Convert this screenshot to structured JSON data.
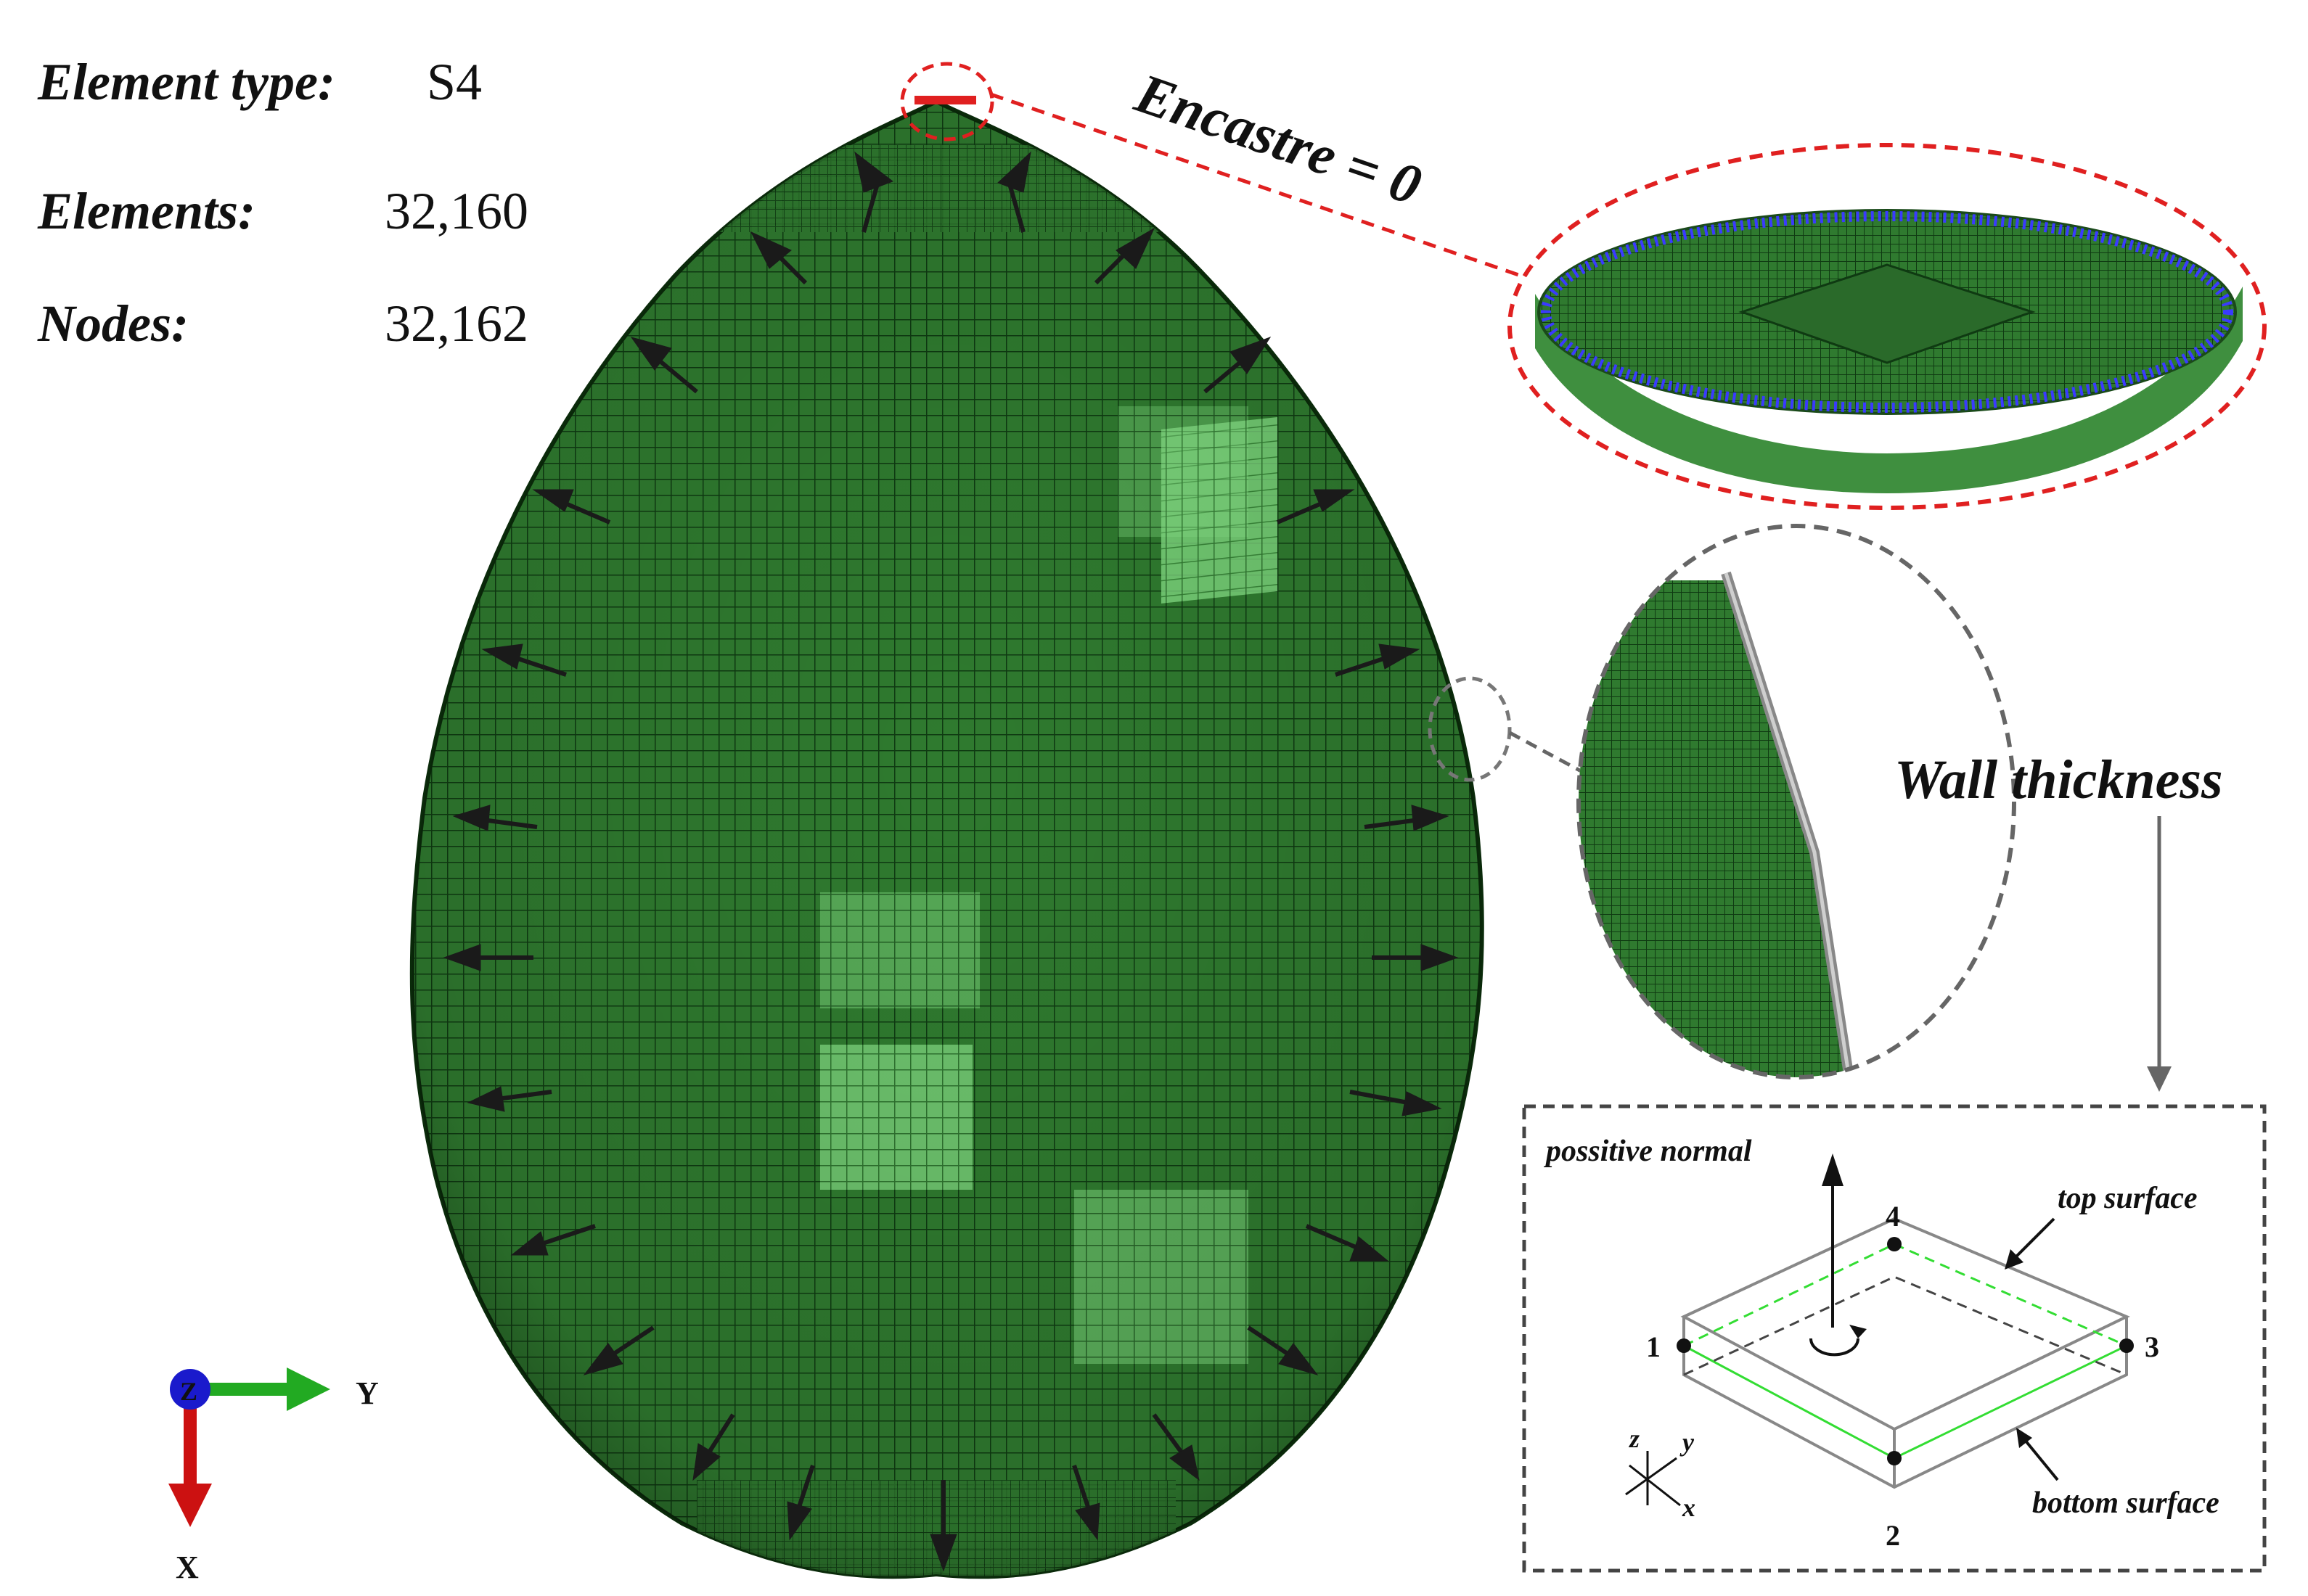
{
  "mesh_info": {
    "element_type_label": "Element type:",
    "element_type_value": "S4",
    "elements_label": "Elements:",
    "elements_value": "32,160",
    "nodes_label": "Nodes:",
    "nodes_value": "32,162"
  },
  "boundary": {
    "encastre_label": "Encastre = 0"
  },
  "wall": {
    "thickness_label": "Wall thickness"
  },
  "shell_element": {
    "positive_normal_label": "possitive normal",
    "top_surface_label": "top surface",
    "bottom_surface_label": "bottom surface",
    "node_labels": [
      "1",
      "2",
      "3",
      "4"
    ],
    "local_axes": {
      "z": "z",
      "y": "y",
      "x": "x"
    }
  },
  "global_axes": {
    "z": "Z",
    "y": "Y",
    "x": "X"
  },
  "colors": {
    "mesh_green": "#2e7d32",
    "mesh_dark": "#0d3b10",
    "mesh_highlight": "#8ee68e",
    "encastre_red": "#e02020",
    "constraint_blue": "#3a3aff",
    "axis_green": "#22aa22",
    "axis_red": "#cc1111",
    "axis_blue": "#1a1acc",
    "callout_gray": "#555555"
  }
}
